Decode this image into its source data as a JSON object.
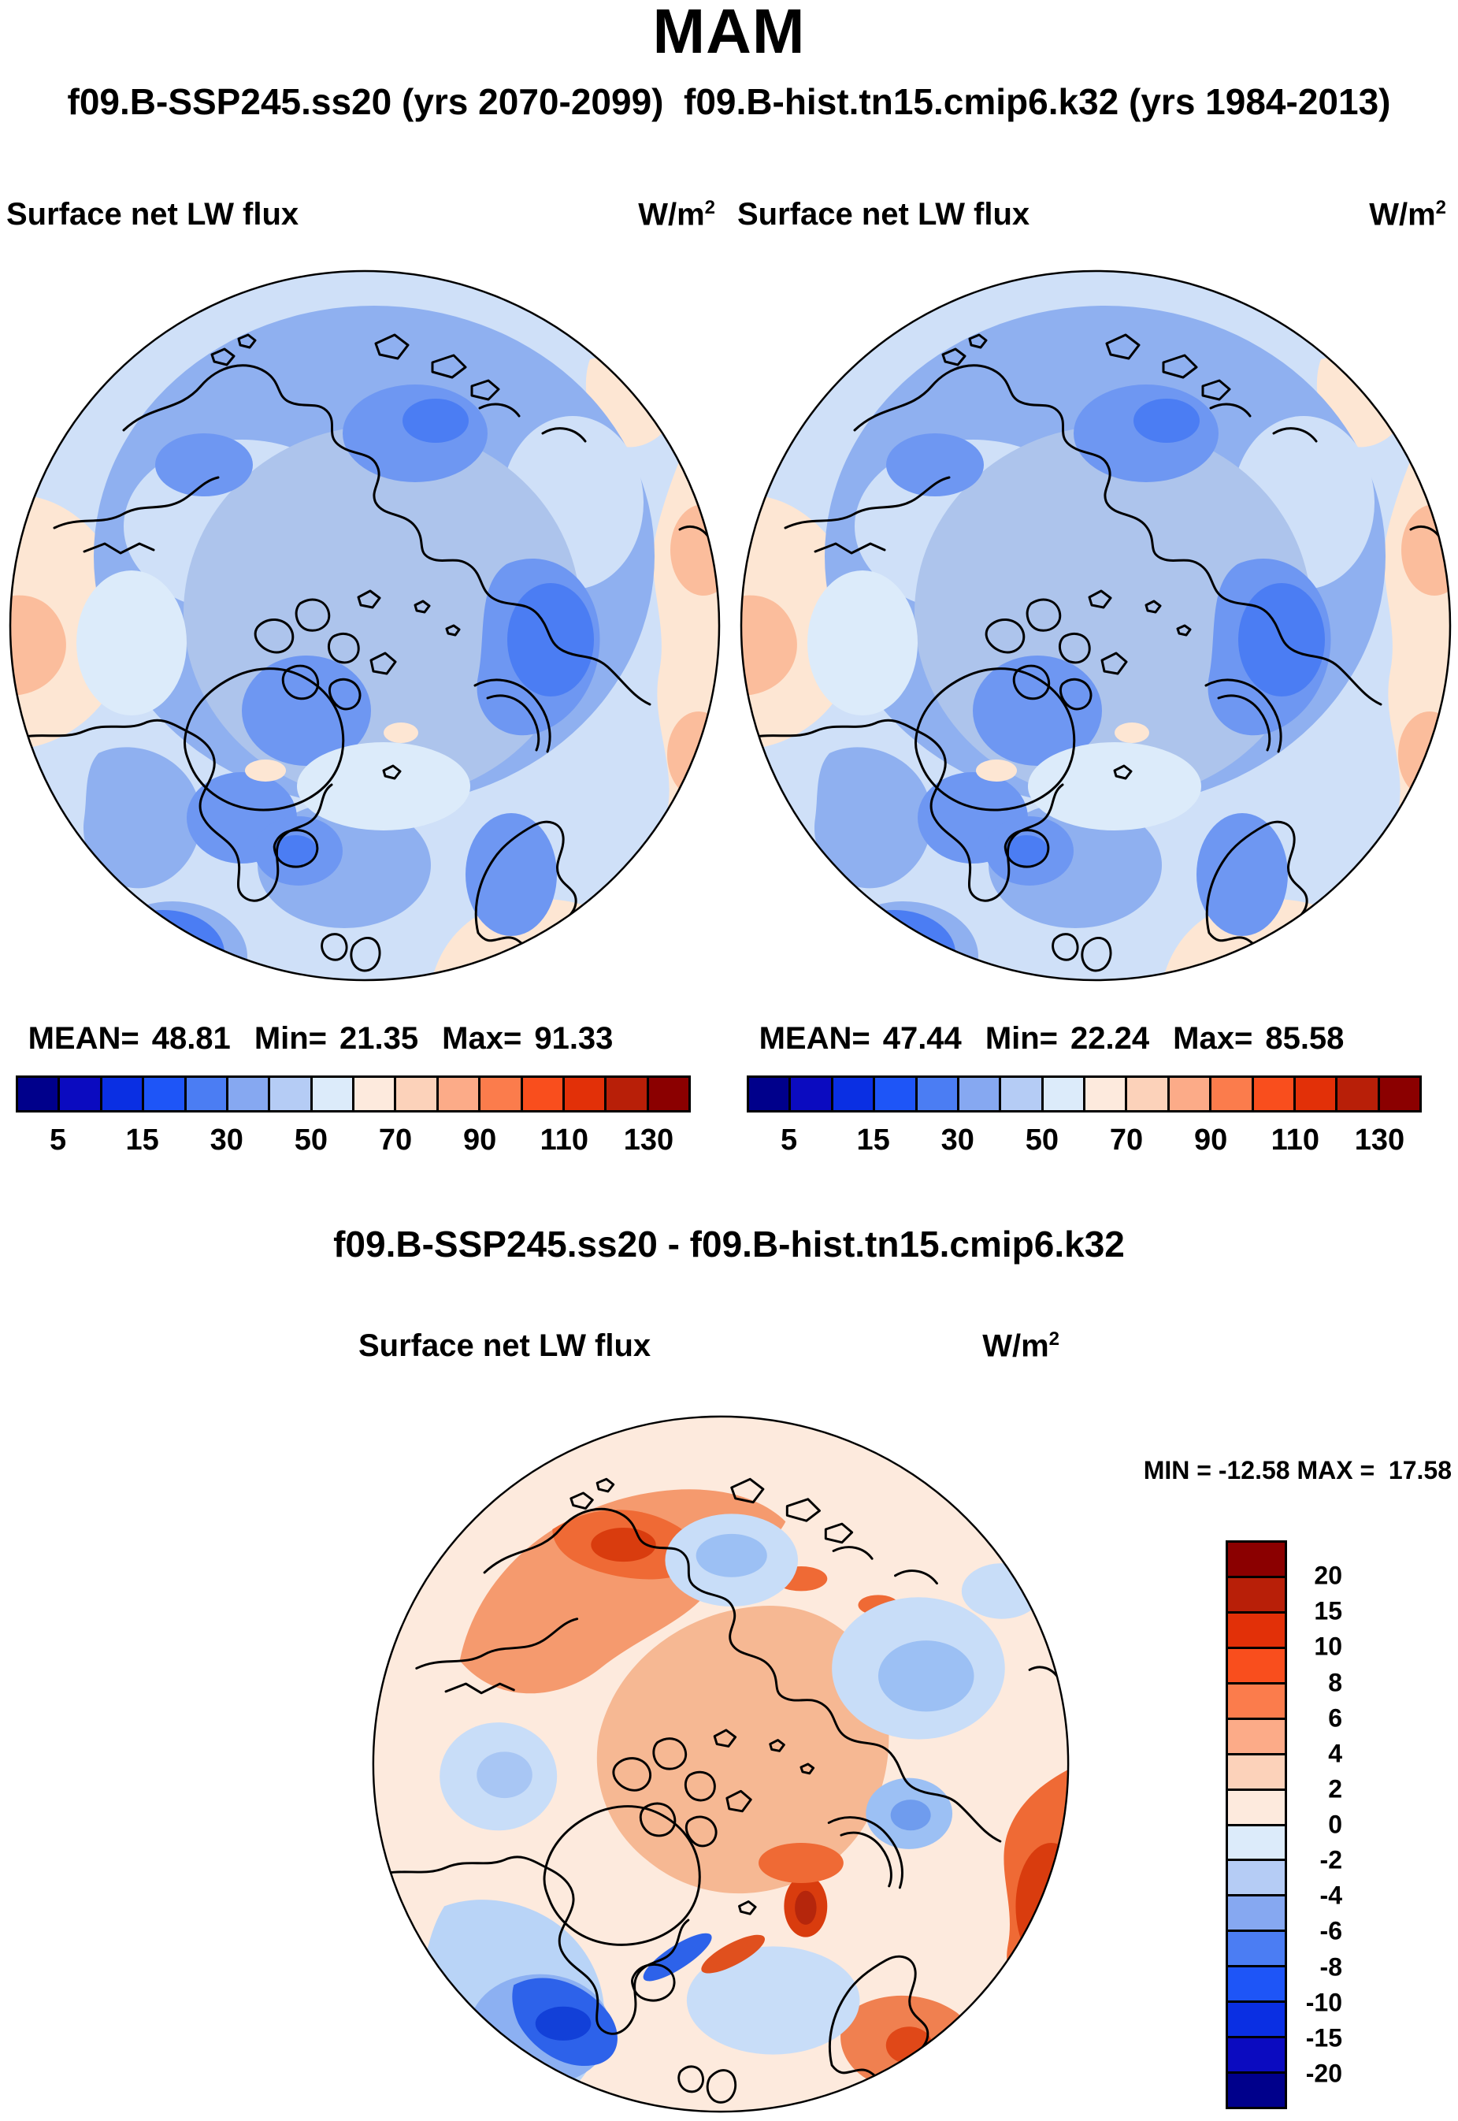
{
  "figure": {
    "season_title": "MAM",
    "runs_subtitle": "f09.B-SSP245.ss20 (yrs 2070-2099)  f09.B-hist.tn15.cmip6.k32 (yrs 1984-2013)",
    "diff_title": "f09.B-SSP245.ss20 - f09.B-hist.tn15.cmip6.k32"
  },
  "panels": {
    "left": {
      "variable": "Surface net LW flux",
      "units_base": "W/m",
      "units_exp": "2",
      "stats": {
        "mean_label": "MEAN=",
        "mean": "48.81",
        "min_label": "Min=",
        "min": "21.35",
        "max_label": "Max=",
        "max": "91.33"
      }
    },
    "right": {
      "variable": "Surface net LW flux",
      "units_base": "W/m",
      "units_exp": "2",
      "stats": {
        "mean_label": "MEAN=",
        "mean": "47.44",
        "min_label": "Min=",
        "min": "22.24",
        "max_label": "Max=",
        "max": "85.58"
      }
    },
    "diff": {
      "variable": "Surface net LW flux",
      "units_base": "W/m",
      "units_exp": "2",
      "minmax_text": "MIN = -12.58 MAX =  17.58"
    }
  },
  "colorbars": {
    "flux": {
      "orientation": "horizontal",
      "colors": [
        "#00008b",
        "#0b0bc0",
        "#0a2fe3",
        "#1e55f7",
        "#4b7df3",
        "#86a8f1",
        "#b5ccf5",
        "#dcebfa",
        "#fdeadd",
        "#fcd2ba",
        "#fcab88",
        "#fb7c4c",
        "#f94e1d",
        "#e23008",
        "#b81f08",
        "#8b0000"
      ],
      "tick_labels": [
        "5",
        "15",
        "30",
        "50",
        "70",
        "90",
        "110",
        "130"
      ],
      "tick_positions": [
        1,
        3,
        5,
        7,
        9,
        11,
        13,
        15
      ]
    },
    "diff": {
      "orientation": "vertical",
      "colors": [
        "#8b0000",
        "#b81f08",
        "#e23008",
        "#f94e1d",
        "#fb7c4c",
        "#fcab88",
        "#fcd2ba",
        "#fdeadd",
        "#dcebfa",
        "#b5ccf5",
        "#86a8f1",
        "#4b7df3",
        "#1e55f7",
        "#0a2fe3",
        "#0b0bc0",
        "#00008b"
      ],
      "tick_labels": [
        "20",
        "15",
        "10",
        "8",
        "6",
        "4",
        "2",
        "0",
        "-2",
        "-4",
        "-6",
        "-8",
        "-10",
        "-15",
        "-20"
      ],
      "tick_positions": [
        1,
        2,
        3,
        4,
        5,
        6,
        7,
        8,
        9,
        10,
        11,
        12,
        13,
        14,
        15
      ]
    }
  },
  "chart_data": [
    {
      "type": "heatmap",
      "subtype": "north-polar-stereographic-contour-map",
      "season": "MAM",
      "title": "f09.B-SSP245.ss20 (yrs 2070-2099)",
      "variable": "Surface net LW flux",
      "units": "W/m2",
      "stats": {
        "mean": 48.81,
        "min": 21.35,
        "max": 91.33
      },
      "contour_levels": [
        5,
        10,
        15,
        20,
        30,
        40,
        50,
        60,
        70,
        80,
        90,
        100,
        110,
        120,
        130
      ],
      "labeled_levels": [
        5,
        15,
        30,
        50,
        70,
        90,
        110,
        130
      ],
      "palette": [
        "#00008b",
        "#0b0bc0",
        "#0a2fe3",
        "#1e55f7",
        "#4b7df3",
        "#86a8f1",
        "#b5ccf5",
        "#dcebfa",
        "#fdeadd",
        "#fcd2ba",
        "#fcab88",
        "#fb7c4c",
        "#f94e1d",
        "#e23008",
        "#b81f08",
        "#8b0000"
      ],
      "legend_position": "below"
    },
    {
      "type": "heatmap",
      "subtype": "north-polar-stereographic-contour-map",
      "season": "MAM",
      "title": "f09.B-hist.tn15.cmip6.k32 (yrs 1984-2013)",
      "variable": "Surface net LW flux",
      "units": "W/m2",
      "stats": {
        "mean": 47.44,
        "min": 22.24,
        "max": 85.58
      },
      "contour_levels": [
        5,
        10,
        15,
        20,
        30,
        40,
        50,
        60,
        70,
        80,
        90,
        100,
        110,
        120,
        130
      ],
      "labeled_levels": [
        5,
        15,
        30,
        50,
        70,
        90,
        110,
        130
      ],
      "palette": [
        "#00008b",
        "#0b0bc0",
        "#0a2fe3",
        "#1e55f7",
        "#4b7df3",
        "#86a8f1",
        "#b5ccf5",
        "#dcebfa",
        "#fdeadd",
        "#fcd2ba",
        "#fcab88",
        "#fb7c4c",
        "#f94e1d",
        "#e23008",
        "#b81f08",
        "#8b0000"
      ],
      "legend_position": "below"
    },
    {
      "type": "heatmap",
      "subtype": "north-polar-stereographic-contour-map",
      "season": "MAM",
      "title": "f09.B-SSP245.ss20 - f09.B-hist.tn15.cmip6.k32",
      "variable": "Surface net LW flux",
      "units": "W/m2",
      "stats": {
        "min": -12.58,
        "max": 17.58
      },
      "contour_levels": [
        -20,
        -15,
        -10,
        -8,
        -6,
        -4,
        -2,
        0,
        2,
        4,
        6,
        8,
        10,
        15,
        20
      ],
      "palette_top_to_bottom": [
        "#8b0000",
        "#b81f08",
        "#e23008",
        "#f94e1d",
        "#fb7c4c",
        "#fcab88",
        "#fcd2ba",
        "#fdeadd",
        "#dcebfa",
        "#b5ccf5",
        "#86a8f1",
        "#4b7df3",
        "#1e55f7",
        "#0a2fe3",
        "#0b0bc0",
        "#00008b"
      ],
      "legend_position": "right"
    }
  ]
}
